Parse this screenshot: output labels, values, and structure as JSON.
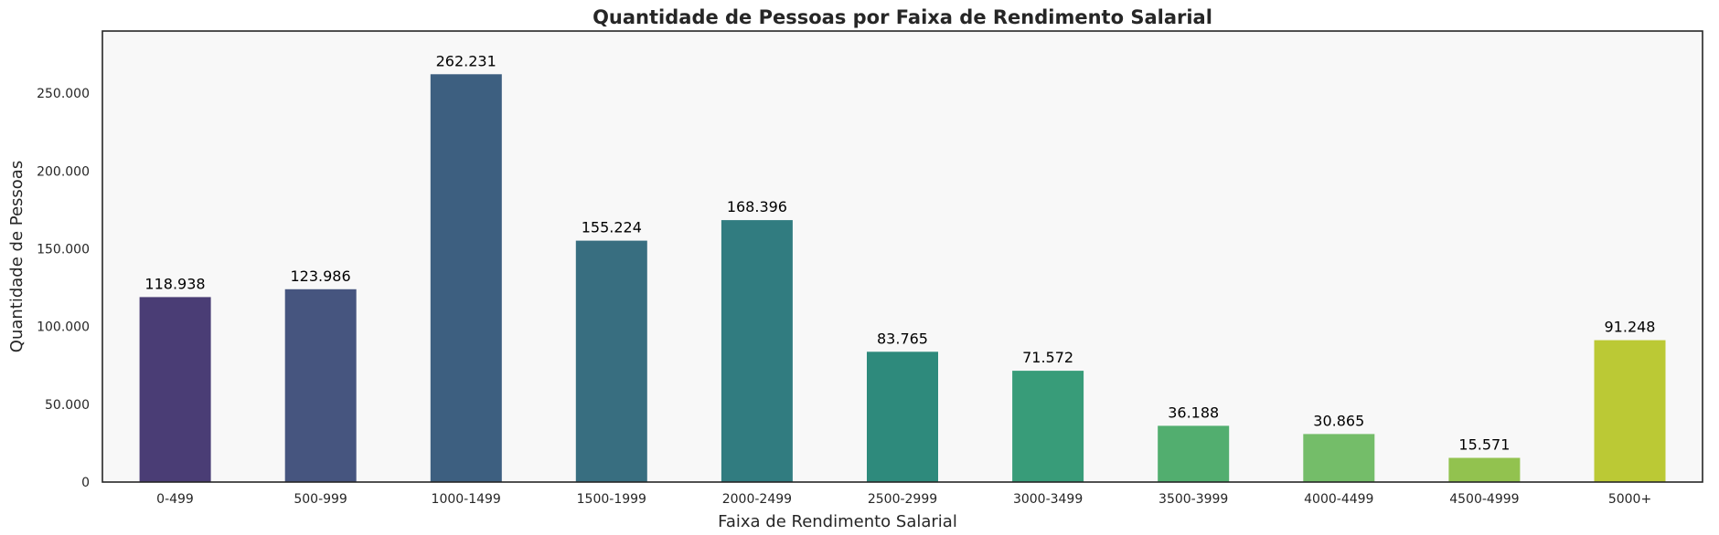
{
  "chart_data": {
    "type": "bar",
    "title": "Quantidade de Pessoas por Faixa de Rendimento Salarial",
    "xlabel": "Faixa de Rendimento Salarial",
    "ylabel": "Quantidade de Pessoas",
    "categories": [
      "0-499",
      "500-999",
      "1000-1499",
      "1500-1999",
      "2000-2499",
      "2500-2999",
      "3000-3499",
      "3500-3999",
      "4000-4499",
      "4500-4999",
      "5000+"
    ],
    "values": [
      118938,
      123986,
      262231,
      155224,
      168396,
      83765,
      71572,
      36188,
      30865,
      15571,
      91248
    ],
    "value_labels": [
      "118.938",
      "123.986",
      "262.231",
      "155.224",
      "168.396",
      "83.765",
      "71.572",
      "36.188",
      "30.865",
      "15.571",
      "91.248"
    ],
    "colors": [
      "#4a3d75",
      "#46557f",
      "#3d5f80",
      "#386e80",
      "#317c80",
      "#2e8a7c",
      "#389c79",
      "#52ae6f",
      "#74bd69",
      "#92c24f",
      "#bbc935"
    ],
    "ylim": [
      0,
      290000
    ],
    "yticks": [
      0,
      50000,
      100000,
      150000,
      200000,
      250000
    ],
    "ytick_labels": [
      "0",
      "50.000",
      "100.000",
      "150.000",
      "200.000",
      "250.000"
    ],
    "grid": false,
    "background": "#f8f8f8"
  }
}
